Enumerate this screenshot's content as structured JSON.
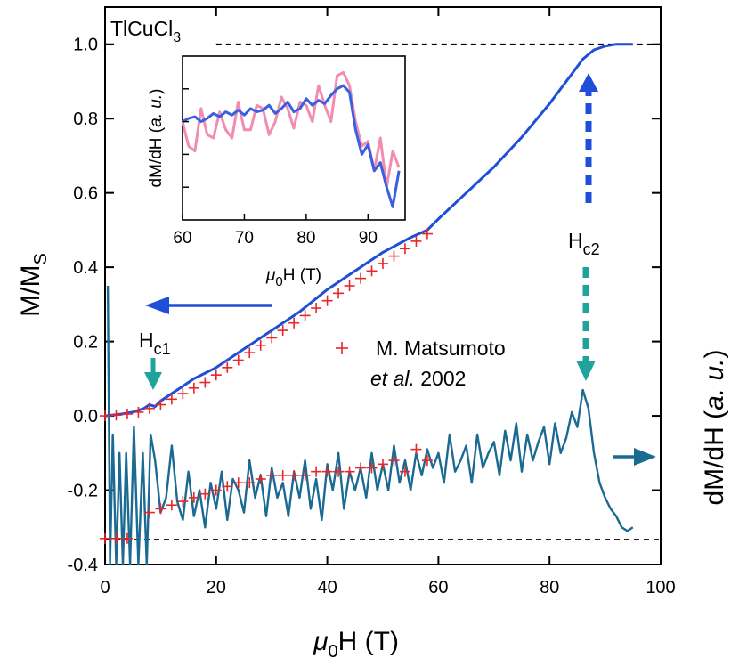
{
  "chart_data": {
    "type": "line",
    "main": {
      "sample_label": "TlCuCl",
      "sample_sub": "3",
      "xlabel": {
        "mu": "μ",
        "sub": "0",
        "rest": "H (T)"
      },
      "ylabel_left": {
        "main": "M/M",
        "sub": "S"
      },
      "ylabel_right": {
        "main": "dM/dH (",
        "italic": "a. u.",
        "end": ")"
      },
      "xlim": [
        0,
        100
      ],
      "ylim": [
        -0.4,
        1.1
      ],
      "x_ticks": [
        0,
        20,
        40,
        60,
        80,
        100
      ],
      "y_ticks": [
        -0.4,
        -0.2,
        0.0,
        0.2,
        0.4,
        0.6,
        0.8,
        1.0
      ],
      "y_tick_labels": [
        "-0.4",
        "-0.2",
        "0.0",
        "0.2",
        "0.4",
        "0.6",
        "0.8",
        "1.0"
      ],
      "ref_lines": [
        1.0,
        -0.333
      ],
      "series": [
        {
          "kind": "magnetization",
          "color": "#1f4fd9",
          "x": [
            0,
            3,
            5,
            7,
            8,
            9,
            10,
            12,
            14,
            16,
            18,
            20,
            25,
            30,
            35,
            40,
            45,
            50,
            55,
            58,
            60,
            65,
            70,
            75,
            80,
            84,
            86,
            88,
            90,
            92,
            95
          ],
          "y": [
            0.0,
            0.005,
            0.01,
            0.02,
            0.03,
            0.025,
            0.04,
            0.06,
            0.08,
            0.1,
            0.115,
            0.13,
            0.18,
            0.23,
            0.28,
            0.34,
            0.39,
            0.44,
            0.48,
            0.5,
            0.53,
            0.6,
            0.67,
            0.75,
            0.84,
            0.92,
            0.96,
            0.985,
            0.995,
            1.0,
            1.0
          ]
        },
        {
          "kind": "derivative",
          "color": "#1a6a93",
          "x": [
            0.5,
            0.9,
            1.4,
            2.0,
            2.6,
            3.2,
            3.8,
            4.5,
            5.2,
            6.0,
            6.8,
            7.5,
            8.2,
            9.0,
            10.0,
            11.0,
            12.0,
            13.0,
            14.0,
            15.0,
            16.0,
            17.0,
            18.0,
            19.0,
            20.0,
            21.0,
            22.0,
            23.0,
            24.0,
            25.0,
            26.0,
            27.0,
            28.0,
            29.0,
            30.0,
            31.0,
            32.0,
            33.0,
            34.0,
            35.0,
            36.0,
            37.0,
            38.0,
            39.0,
            40.0,
            41.0,
            42.0,
            43.0,
            44.0,
            45.0,
            46.0,
            47.0,
            48.0,
            49.0,
            50.0,
            51.0,
            52.0,
            53.0,
            54.0,
            55.0,
            56.0,
            57.0,
            58.0,
            59.0,
            60.0,
            61.0,
            62.0,
            63.0,
            64.0,
            65.0,
            66.0,
            67.0,
            68.0,
            69.0,
            70.0,
            71.0,
            72.0,
            73.0,
            74.0,
            75.0,
            76.0,
            77.0,
            78.0,
            79.0,
            80.0,
            81.0,
            82.0,
            83.0,
            84.0,
            85.0,
            86.0,
            87.0,
            88.0,
            89.0,
            90.0,
            91.0,
            92.0,
            93.0,
            94.0,
            95.0
          ],
          "y": [
            0.35,
            -0.4,
            -0.05,
            -0.4,
            -0.1,
            -0.4,
            -0.1,
            -0.4,
            -0.03,
            -0.4,
            -0.1,
            -0.4,
            -0.05,
            -0.12,
            -0.26,
            -0.22,
            -0.08,
            -0.23,
            -0.28,
            -0.15,
            -0.27,
            -0.2,
            -0.3,
            -0.18,
            -0.25,
            -0.15,
            -0.28,
            -0.17,
            -0.2,
            -0.26,
            -0.12,
            -0.22,
            -0.16,
            -0.27,
            -0.14,
            -0.22,
            -0.18,
            -0.27,
            -0.15,
            -0.22,
            -0.12,
            -0.25,
            -0.17,
            -0.28,
            -0.13,
            -0.2,
            -0.1,
            -0.25,
            -0.15,
            -0.2,
            -0.14,
            -0.22,
            -0.1,
            -0.2,
            -0.13,
            -0.2,
            -0.08,
            -0.18,
            -0.12,
            -0.2,
            -0.1,
            -0.16,
            -0.09,
            -0.14,
            -0.1,
            -0.18,
            -0.05,
            -0.15,
            -0.12,
            -0.08,
            -0.18,
            -0.05,
            -0.14,
            -0.1,
            -0.07,
            -0.16,
            -0.04,
            -0.12,
            -0.02,
            -0.15,
            -0.05,
            -0.12,
            -0.07,
            -0.03,
            -0.13,
            -0.02,
            -0.1,
            -0.06,
            0.01,
            -0.03,
            0.07,
            0.02,
            -0.1,
            -0.18,
            -0.22,
            -0.25,
            -0.27,
            -0.3,
            -0.31,
            -0.3
          ]
        },
        {
          "kind": "markers",
          "name": "M. Matsumoto et al. 2002",
          "color": "#e8262a",
          "x": [
            0,
            2,
            4,
            6,
            8,
            10,
            12,
            14,
            16,
            18,
            20,
            22,
            24,
            26,
            28,
            30,
            32,
            34,
            36,
            38,
            40,
            42,
            44,
            46,
            48,
            50,
            52,
            54,
            56,
            58
          ],
          "y": [
            0.0,
            0.002,
            0.005,
            0.01,
            0.02,
            0.03,
            0.045,
            0.06,
            0.075,
            0.09,
            0.11,
            0.13,
            0.15,
            0.17,
            0.19,
            0.21,
            0.23,
            0.25,
            0.27,
            0.29,
            0.31,
            0.33,
            0.35,
            0.37,
            0.39,
            0.41,
            0.43,
            0.45,
            0.47,
            0.49
          ]
        },
        {
          "kind": "markers",
          "color": "#e8262a",
          "x": [
            0,
            2,
            4,
            8,
            10,
            12,
            14,
            16,
            18,
            20,
            22,
            24,
            26,
            28,
            30,
            32,
            34,
            36,
            38,
            40,
            42,
            44,
            46,
            48,
            50,
            52,
            54,
            56,
            58
          ],
          "y": [
            -0.33,
            -0.33,
            -0.33,
            -0.26,
            -0.25,
            -0.24,
            -0.23,
            -0.22,
            -0.21,
            -0.2,
            -0.19,
            -0.18,
            -0.18,
            -0.17,
            -0.16,
            -0.16,
            -0.16,
            -0.16,
            -0.15,
            -0.15,
            -0.15,
            -0.15,
            -0.14,
            -0.14,
            -0.13,
            -0.12,
            -0.15,
            -0.09,
            -0.12
          ]
        }
      ],
      "annotations": {
        "hc1": {
          "label": "H",
          "sub": "c1"
        },
        "hc2": {
          "label": "H",
          "sub": "c2"
        },
        "legend": {
          "line1": "M. Matsumoto",
          "line2_italic": "et al.",
          "line2_rest": " 2002"
        }
      }
    },
    "inset": {
      "xlabel": {
        "mu": "μ",
        "sub": "0",
        "rest": "H (T)"
      },
      "ylabel": {
        "main": "dM/dH (",
        "italic": "a. u.",
        "end": ")"
      },
      "xlim": [
        60,
        96
      ],
      "ylim": [
        0,
        1
      ],
      "x_ticks": [
        60,
        70,
        80,
        90
      ],
      "series": [
        {
          "color": "#f28cb1",
          "x": [
            60,
            61,
            62,
            63,
            64,
            65,
            66,
            67,
            68,
            69,
            70,
            71,
            72,
            73,
            74,
            75,
            76,
            77,
            78,
            79,
            80,
            81,
            82,
            83,
            84,
            85,
            86,
            87,
            88,
            89,
            90,
            91,
            92,
            93,
            94,
            95
          ],
          "y": [
            0.6,
            0.45,
            0.42,
            0.68,
            0.52,
            0.5,
            0.66,
            0.55,
            0.5,
            0.72,
            0.55,
            0.55,
            0.7,
            0.68,
            0.52,
            0.6,
            0.75,
            0.68,
            0.56,
            0.72,
            0.7,
            0.6,
            0.82,
            0.7,
            0.6,
            0.88,
            0.9,
            0.82,
            0.6,
            0.45,
            0.48,
            0.3,
            0.5,
            0.2,
            0.42,
            0.32
          ]
        },
        {
          "color": "#3a5fe0",
          "x": [
            60,
            61,
            62,
            63,
            64,
            65,
            66,
            67,
            68,
            69,
            70,
            71,
            72,
            73,
            74,
            75,
            76,
            77,
            78,
            79,
            80,
            81,
            82,
            83,
            84,
            85,
            86,
            87,
            88,
            89,
            90,
            91,
            92,
            93,
            94,
            95
          ],
          "y": [
            0.6,
            0.62,
            0.63,
            0.6,
            0.62,
            0.65,
            0.63,
            0.66,
            0.64,
            0.67,
            0.64,
            0.68,
            0.66,
            0.67,
            0.7,
            0.65,
            0.68,
            0.72,
            0.66,
            0.68,
            0.74,
            0.7,
            0.73,
            0.71,
            0.76,
            0.8,
            0.82,
            0.78,
            0.55,
            0.4,
            0.46,
            0.3,
            0.35,
            0.2,
            0.08,
            0.3
          ]
        }
      ]
    },
    "colors": {
      "hc1_arrow": "#1fa39a",
      "hc2_arrow_up": "#1f4fd9",
      "hc2_arrow_down": "#1fa39a",
      "left_arrow": "#1f4fd9",
      "right_arrow": "#1a6a93"
    }
  }
}
